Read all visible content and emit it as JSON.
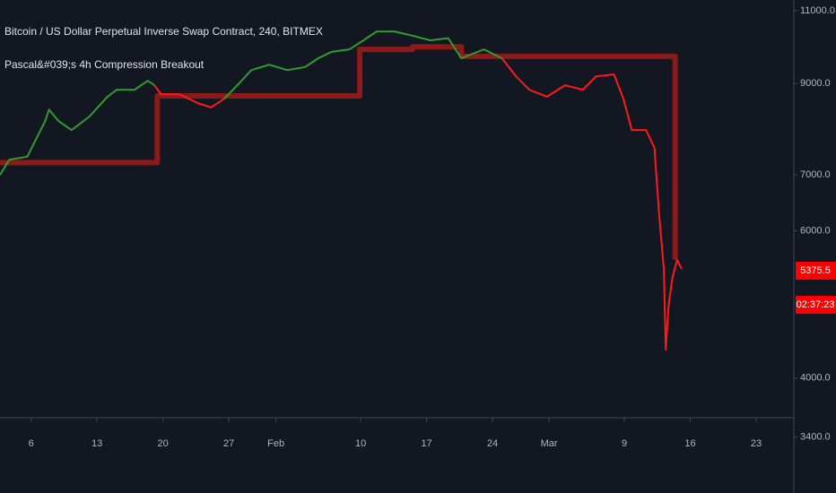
{
  "chart_data": {
    "type": "line",
    "title": "Bitcoin / US Dollar Perpetual Inverse Swap Contract, 240, BITMEX",
    "subtitle": "Pascal&#039;s 4h Compression Breakout",
    "log_scale": true,
    "ylim": [
      3380,
      11330
    ],
    "yticks": [
      {
        "value": 11000,
        "label": "11000.0"
      },
      {
        "value": 9000,
        "label": "9000.0"
      },
      {
        "value": 7000,
        "label": "7000.0"
      },
      {
        "value": 6000,
        "label": "6000.0"
      },
      {
        "value": 4000,
        "label": "4000.0"
      },
      {
        "value": 3400,
        "label": "3400.0"
      }
    ],
    "xlim": [
      2.7,
      87
    ],
    "xticks": [
      6,
      13,
      20,
      27,
      {
        "value": 32,
        "label": "Feb"
      },
      {
        "value": 41,
        "label": "10"
      },
      {
        "value": 48,
        "label": "17"
      },
      {
        "value": 55,
        "label": "24"
      },
      {
        "value": 61,
        "label": "Mar"
      },
      {
        "value": 69,
        "label": "9"
      },
      {
        "value": 76,
        "label": "16"
      },
      {
        "value": 83,
        "label": "23"
      }
    ],
    "series": [
      {
        "color": "#8b1a1a",
        "x": [
          2.7,
          19.4,
          19.4,
          40.9,
          40.9,
          46.5,
          46.5,
          51.7,
          51.7,
          74.4,
          74.4
        ],
        "values": [
          7240,
          7240,
          8700,
          8700,
          9890,
          9890,
          9960,
          9960,
          9700,
          9700,
          5540
        ]
      },
      {
        "color": "#2e9e2e",
        "x": [
          2.7,
          3.7,
          5.6,
          7.5,
          7.9,
          8.9,
          10.3,
          12.2,
          14.1,
          15.1,
          17.0,
          18.4,
          19.1,
          22.0,
          26.5,
          27.9,
          29.4,
          31.3,
          33.2,
          35.1,
          36.5,
          37.9,
          39.8,
          41.3,
          42.7,
          44.6,
          46.5,
          48.4,
          50.3,
          51.7,
          54.1,
          56.0
        ],
        "values": [
          7000,
          7300,
          7360,
          8120,
          8380,
          8120,
          7920,
          8220,
          8680,
          8850,
          8850,
          9070,
          8960,
          null,
          8630,
          8960,
          9340,
          9480,
          9340,
          9420,
          9650,
          9820,
          9890,
          10140,
          10390,
          10390,
          10270,
          10140,
          10200,
          9650,
          9890,
          9650
        ]
      },
      {
        "color": "#ff1a1a",
        "x": [
          19.1,
          19.8,
          21.7,
          23.7,
          25.1,
          26.5,
          27.0,
          56.0,
          57.5,
          58.9,
          60.8,
          62.7,
          64.6,
          66.0,
          67.9,
          68.9,
          69.8,
          71.3,
          72.2,
          72.7,
          73.2,
          73.4,
          73.7,
          74.1,
          74.6,
          75.1
        ],
        "values": [
          8960,
          8740,
          8740,
          8530,
          8430,
          8630,
          null,
          9650,
          9180,
          8850,
          8680,
          8960,
          8850,
          9180,
          9230,
          8630,
          7920,
          7920,
          7540,
          6260,
          5400,
          4325,
          4890,
          5270,
          5540,
          5400
        ]
      }
    ],
    "last_value": 5375.5,
    "countdown": "02:37:23"
  }
}
